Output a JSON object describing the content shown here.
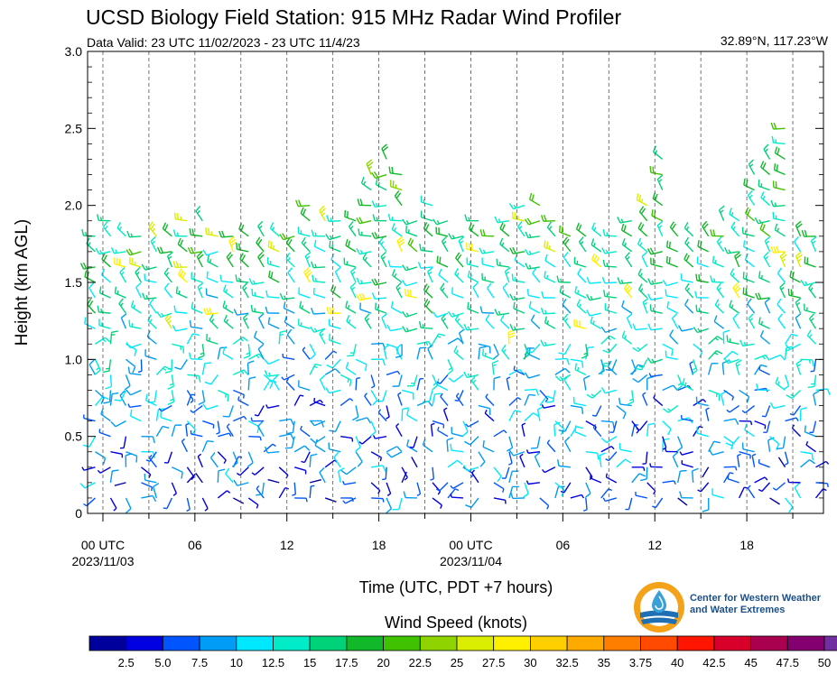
{
  "header": {
    "title": "UCSD Biology Field Station: 915 MHz Radar Wind Profiler",
    "subtitle": "Data Valid: 23 UTC 11/02/2023 - 23 UTC 11/4/23",
    "location": "32.89°N, 117.23°W"
  },
  "logo": {
    "line1": "Center for Western Weather",
    "line2": "and Water Extremes",
    "icon": "water-drop-globe-icon",
    "colors": [
      "#f5a21b",
      "#1f6fb5",
      "#3aa0d8"
    ]
  },
  "legend": {
    "title": "Wind Speed (knots)",
    "labels": [
      "2.5",
      "5.0",
      "7.5",
      "10",
      "12.5",
      "15",
      "17.5",
      "20",
      "22.5",
      "25",
      "27.5",
      "30",
      "32.5",
      "35",
      "3.75",
      "40",
      "42.5",
      "45",
      "47.5",
      "50"
    ],
    "colors": [
      "#00009c",
      "#0000e0",
      "#0055ff",
      "#009cf5",
      "#00e8ff",
      "#00ecc8",
      "#00d27a",
      "#10b82a",
      "#3fc300",
      "#8fd400",
      "#d9ee00",
      "#fff000",
      "#ffd000",
      "#ffaa00",
      "#ff7e00",
      "#ff4a00",
      "#ff1500",
      "#d8002a",
      "#aa0050",
      "#840070",
      "#7030a0"
    ]
  },
  "chart_data": {
    "type": "wind-barb-profile",
    "ylabel": "Height (km AGL)",
    "xlabel": "Time (UTC, PDT +7 hours)",
    "ylim": [
      0,
      3.0
    ],
    "yticks": [
      "0",
      "0.5",
      "1.0",
      "1.5",
      "2.0",
      "2.5",
      "3.0"
    ],
    "xlim_hours": [
      0,
      48
    ],
    "start": "2023-11-02 23 UTC",
    "xticks": [
      {
        "hour": 1,
        "label": "00 UTC",
        "sub": "2023/11/03"
      },
      {
        "hour": 7,
        "label": "06",
        "sub": ""
      },
      {
        "hour": 13,
        "label": "12",
        "sub": ""
      },
      {
        "hour": 19,
        "label": "18",
        "sub": ""
      },
      {
        "hour": 25,
        "label": "00 UTC",
        "sub": "2023/11/04"
      },
      {
        "hour": 31,
        "label": "06",
        "sub": ""
      },
      {
        "hour": 37,
        "label": "12",
        "sub": ""
      },
      {
        "hour": 43,
        "label": "18",
        "sub": ""
      }
    ],
    "gridlines_hours": [
      1,
      4,
      7,
      10,
      13,
      16,
      19,
      22,
      25,
      28,
      31,
      34,
      37,
      40,
      43,
      46
    ],
    "grid": "dashed vertical",
    "profile_top_km": [
      1.9,
      1.95,
      1.9,
      1.9,
      1.9,
      1.9,
      1.95,
      2.0,
      1.9,
      1.9,
      1.9,
      1.9,
      1.9,
      1.9,
      2.1,
      2.0,
      2.0,
      2.0,
      2.3,
      2.35,
      2.3,
      2.0,
      2.1,
      1.95,
      1.9,
      1.95,
      1.9,
      2.0,
      2.1,
      2.05,
      2.0,
      1.9,
      1.9,
      1.9,
      1.9,
      2.0,
      2.1,
      2.4,
      1.9,
      1.9,
      1.9,
      1.95,
      2.0,
      2.3,
      2.4,
      2.6,
      1.9,
      1.9
    ],
    "speed_profile": [
      {
        "height_km": 0.2,
        "kts": 6
      },
      {
        "height_km": 0.6,
        "kts": 8
      },
      {
        "height_km": 1.0,
        "kts": 11
      },
      {
        "height_km": 1.4,
        "kts": 14
      },
      {
        "height_km": 1.8,
        "kts": 17
      },
      {
        "height_km": 2.2,
        "kts": 19
      }
    ]
  }
}
